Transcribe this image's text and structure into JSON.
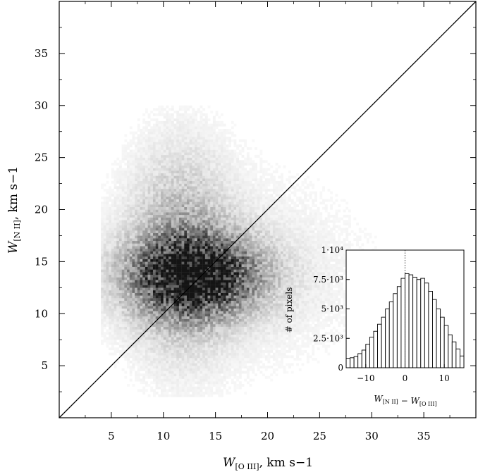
{
  "chart_data": [
    {
      "type": "heatmap",
      "xlabel": "W[O III], km s−1",
      "ylabel": "W[N II], km s−1",
      "xlim": [
        0,
        40
      ],
      "ylim": [
        0,
        40
      ],
      "x_ticks": [
        5,
        10,
        15,
        20,
        25,
        30,
        35
      ],
      "y_ticks": [
        5,
        10,
        15,
        20,
        25,
        30,
        35
      ],
      "x_tick_labels": [
        "5",
        "10",
        "15",
        "20",
        "25",
        "30",
        "35"
      ],
      "y_tick_labels": [
        "5",
        "10",
        "15",
        "20",
        "25",
        "30",
        "35"
      ],
      "reference_line": {
        "from": [
          0,
          0
        ],
        "to": [
          40,
          40
        ]
      },
      "density_peak": {
        "x": 13,
        "y": 13.5
      },
      "grid": false
    },
    {
      "type": "bar",
      "xlabel": "W[N II] − W[O III]",
      "ylabel": "# of pixels",
      "xlim": [
        -15,
        15
      ],
      "ylim": [
        0,
        10000
      ],
      "x_ticks": [
        -10,
        0,
        10
      ],
      "x_tick_labels": [
        "−10",
        "0",
        "10"
      ],
      "y_ticks": [
        0,
        2500,
        5000,
        7500,
        10000
      ],
      "y_tick_labels": [
        "0",
        "2.5·10³",
        "5·10³",
        "7.5·10³",
        "1·10⁴"
      ],
      "bin_width": 1,
      "bin_centers": [
        -14.5,
        -13.5,
        -12.5,
        -11.5,
        -10.5,
        -9.5,
        -8.5,
        -7.5,
        -6.5,
        -5.5,
        -4.5,
        -3.5,
        -2.5,
        -1.5,
        -0.5,
        0.5,
        1.5,
        2.5,
        3.5,
        4.5,
        5.5,
        6.5,
        7.5,
        8.5,
        9.5,
        10.5,
        11.5,
        12.5,
        13.5,
        14.5
      ],
      "values": [
        800,
        850,
        950,
        1200,
        1500,
        2000,
        2600,
        3100,
        3700,
        4300,
        5000,
        5600,
        6300,
        6900,
        7600,
        8000,
        7900,
        7700,
        7500,
        7600,
        7200,
        6500,
        5800,
        5000,
        4300,
        3600,
        2800,
        2200,
        1600,
        1000
      ],
      "reference_line_x": 0,
      "grid": false
    }
  ]
}
